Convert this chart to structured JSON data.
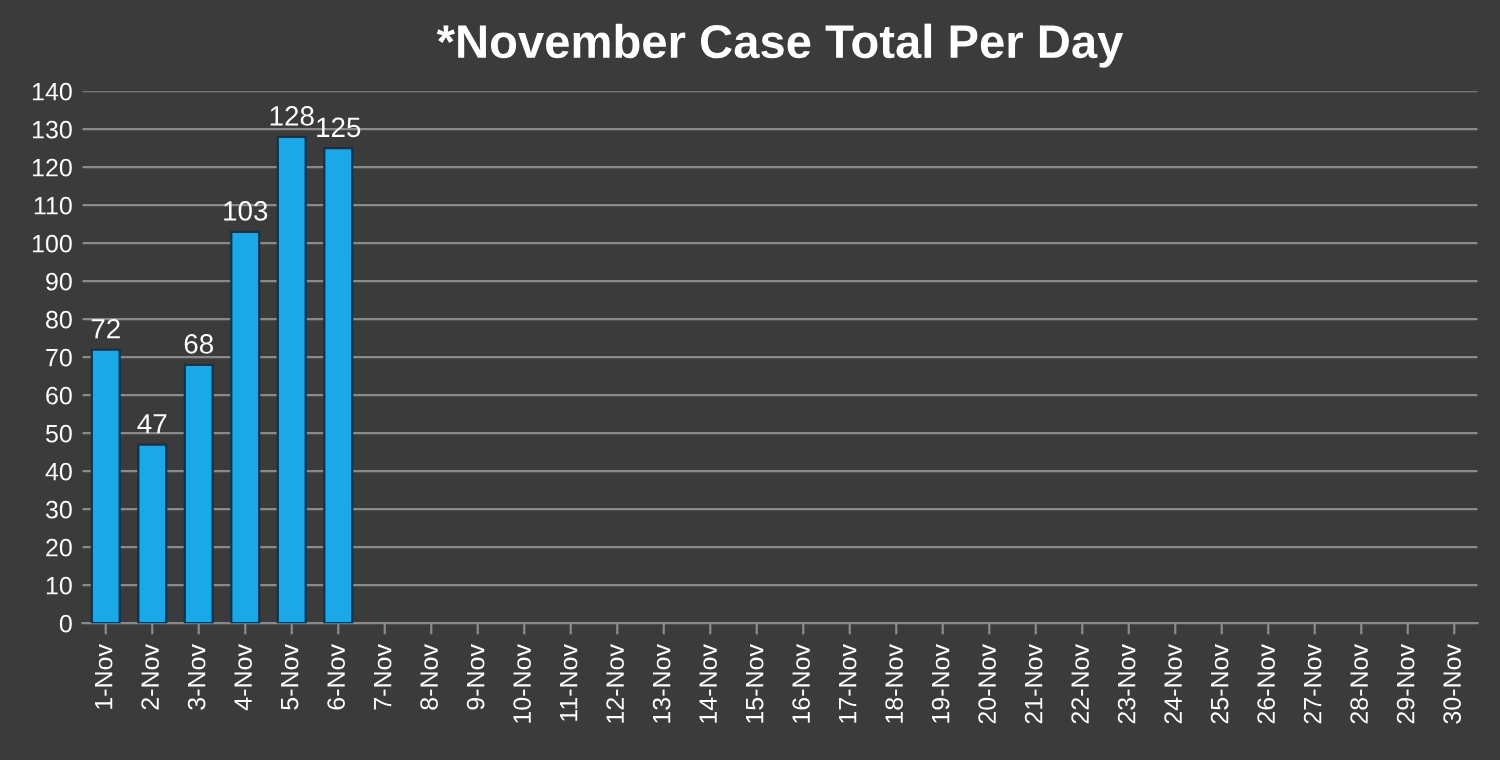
{
  "chart_data": {
    "type": "bar",
    "title": "*November Case Total Per Day",
    "categories": [
      "1-Nov",
      "2-Nov",
      "3-Nov",
      "4-Nov",
      "5-Nov",
      "6-Nov",
      "7-Nov",
      "8-Nov",
      "9-Nov",
      "10-Nov",
      "11-Nov",
      "12-Nov",
      "13-Nov",
      "14-Nov",
      "15-Nov",
      "16-Nov",
      "17-Nov",
      "18-Nov",
      "19-Nov",
      "20-Nov",
      "21-Nov",
      "22-Nov",
      "23-Nov",
      "24-Nov",
      "25-Nov",
      "26-Nov",
      "27-Nov",
      "28-Nov",
      "29-Nov",
      "30-Nov"
    ],
    "values": [
      72,
      47,
      68,
      103,
      128,
      125,
      null,
      null,
      null,
      null,
      null,
      null,
      null,
      null,
      null,
      null,
      null,
      null,
      null,
      null,
      null,
      null,
      null,
      null,
      null,
      null,
      null,
      null,
      null,
      null
    ],
    "color": "#1ba8e8",
    "ylim": [
      0,
      140
    ],
    "yticks": [
      0,
      10,
      20,
      30,
      40,
      50,
      60,
      70,
      80,
      90,
      100,
      110,
      120,
      130,
      140
    ],
    "grid": "y",
    "data_labels": true
  }
}
